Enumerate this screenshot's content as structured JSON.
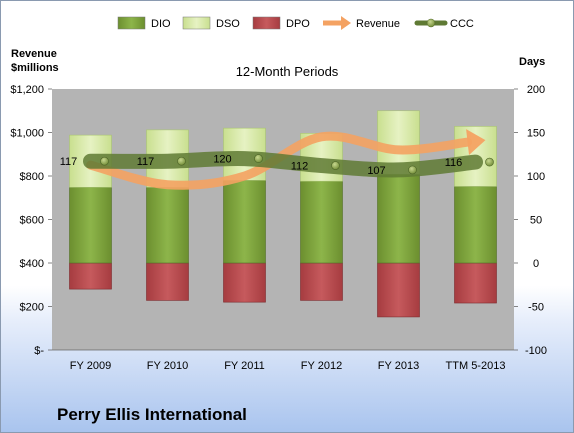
{
  "chart_data": {
    "type": "bar",
    "title": "12-Month Periods",
    "company": "Perry Ellis International",
    "left_axis_label_line1": "Revenue",
    "left_axis_label_line2": "$millions",
    "right_axis_label": "Days",
    "categories": [
      "FY 2009",
      "FY 2010",
      "FY 2011",
      "FY 2012",
      "FY 2013",
      "TTM 5-2013"
    ],
    "left_axis": {
      "ylim": [
        0,
        1200
      ],
      "ticks": [
        0,
        200,
        400,
        600,
        800,
        1000,
        1200
      ],
      "tick_labels": [
        "$-",
        "$200",
        "$400",
        "$600",
        "$800",
        "$1,000",
        "$1,200"
      ]
    },
    "right_axis": {
      "ylim": [
        -100,
        200
      ],
      "ticks": [
        -100,
        -50,
        0,
        50,
        100,
        150,
        200
      ],
      "tick_labels": [
        "-100",
        "-50",
        "0",
        "50",
        "100",
        "150",
        "200"
      ]
    },
    "legend": {
      "position": "top",
      "entries": [
        {
          "name": "DIO",
          "kind": "bar",
          "color": "#7ea23c"
        },
        {
          "name": "DSO",
          "kind": "bar",
          "color": "#d6e9a4"
        },
        {
          "name": "DPO",
          "kind": "bar",
          "color": "#b8484c"
        },
        {
          "name": "Revenue",
          "kind": "arrow",
          "color": "#f4a262"
        },
        {
          "name": "CCC",
          "kind": "line",
          "color": "#5f7a34"
        }
      ]
    },
    "series": [
      {
        "name": "DIO",
        "axis": "right",
        "values": [
          87,
          87,
          95,
          94,
          102,
          88
        ]
      },
      {
        "name": "DSO",
        "axis": "right",
        "values": [
          60,
          66,
          60,
          55,
          73,
          69
        ]
      },
      {
        "name": "DPO",
        "axis": "right",
        "values": [
          -30,
          -43,
          -45,
          -43,
          -62,
          -46
        ]
      },
      {
        "name": "Revenue",
        "axis": "left",
        "values": [
          850,
          760,
          800,
          980,
          920,
          960
        ]
      },
      {
        "name": "CCC",
        "axis": "right",
        "values": [
          117,
          117,
          120,
          112,
          107,
          116
        ]
      }
    ],
    "data_labels": [
      "117",
      "117",
      "120",
      "112",
      "107",
      "116"
    ],
    "grid": false,
    "colors": {
      "plot_background": "#b4b4b4",
      "dio": "#7ea23c",
      "dso": "#d6e9a4",
      "dpo": "#b8484c",
      "revenue": "#f4a262",
      "ccc": "#5f7a34"
    }
  }
}
